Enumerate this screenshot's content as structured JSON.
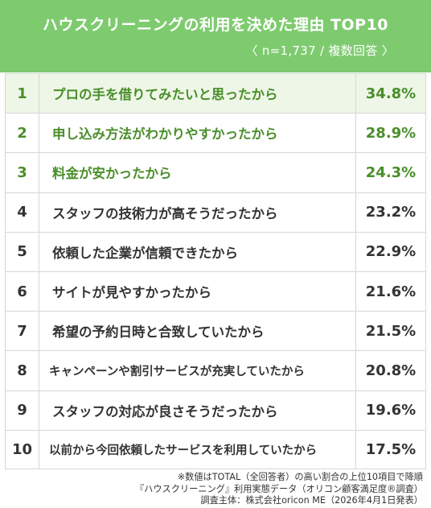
{
  "header": {
    "title": "ハウスクリーニングの利用を決めた理由 TOP10",
    "subtitle": "〈 n=1,737 / 複数回答 〉"
  },
  "chart_data": {
    "type": "table",
    "columns": [
      "rank",
      "reason",
      "percent"
    ],
    "rows": [
      {
        "rank": "1",
        "label": "プロの手を借りてみたいと思ったから",
        "value": 34.8,
        "display": "34.8%"
      },
      {
        "rank": "2",
        "label": "申し込み方法がわかりやすかったから",
        "value": 28.9,
        "display": "28.9%"
      },
      {
        "rank": "3",
        "label": "料金が安かったから",
        "value": 24.3,
        "display": "24.3%"
      },
      {
        "rank": "4",
        "label": "スタッフの技術力が高そうだったから",
        "value": 23.2,
        "display": "23.2%"
      },
      {
        "rank": "5",
        "label": "依頼した企業が信頼できたから",
        "value": 22.9,
        "display": "22.9%"
      },
      {
        "rank": "6",
        "label": "サイトが見やすかったから",
        "value": 21.6,
        "display": "21.6%"
      },
      {
        "rank": "7",
        "label": "希望の予約日時と合致していたから",
        "value": 21.5,
        "display": "21.5%"
      },
      {
        "rank": "8",
        "label": "キャンペーンや割引サービスが充実していたから",
        "value": 20.8,
        "display": "20.8%"
      },
      {
        "rank": "9",
        "label": "スタッフの対応が良さそうだったから",
        "value": 19.6,
        "display": "19.6%"
      },
      {
        "rank": "10",
        "label": "以前から今回依頼したサービスを利用していたから",
        "value": 17.5,
        "display": "17.5%"
      }
    ],
    "highlight_color": "#4a8e2a",
    "header_color": "#7ecb6f"
  },
  "footer": {
    "line1": "※数値はTOTAL（全回答者）の高い割合の上位10項目で降順",
    "line2": "『ハウスクリーニング』利用実態データ（オリコン顧客満足度®調査）",
    "line3": "調査主体：株式会社oricon ME（2026年4月1日発表）"
  }
}
